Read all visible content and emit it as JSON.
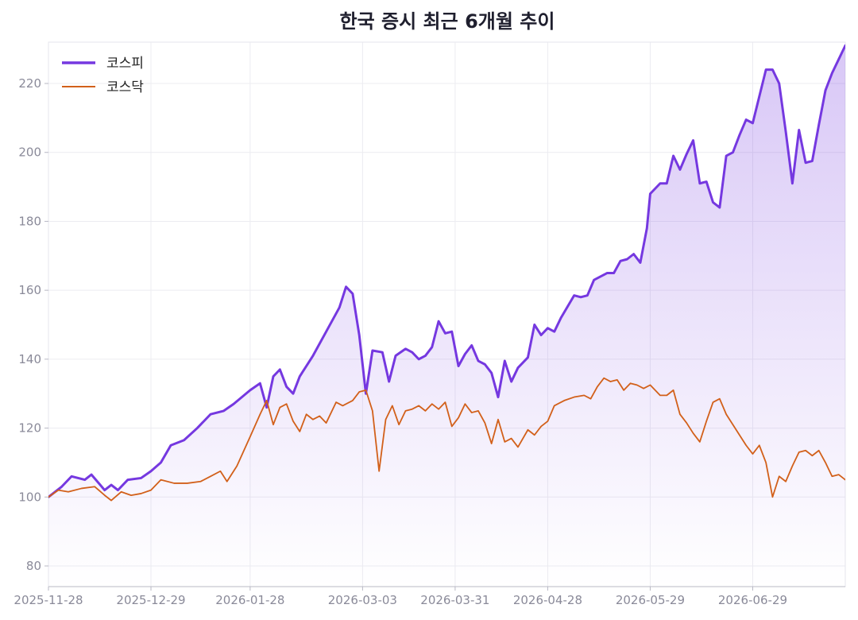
{
  "chart_data": {
    "type": "line",
    "title": "한국 증시 최근 6개월 추이",
    "xlabel": "",
    "ylabel": "",
    "x_ticks": [
      "2025-11-28",
      "2025-12-29",
      "2026-01-28",
      "2026-03-03",
      "2026-03-31",
      "2026-04-28",
      "2026-05-29",
      "2026-06-29"
    ],
    "x_range": [
      "2025-11-28",
      "2026-07-27"
    ],
    "ylim": [
      74,
      232
    ],
    "y_ticks": [
      80,
      100,
      120,
      140,
      160,
      180,
      200,
      220
    ],
    "grid": true,
    "legend_position": "top-left",
    "series": [
      {
        "name": "코스피",
        "color": "#7538e0",
        "area_fill": true,
        "points": [
          [
            "2025-11-28",
            100
          ],
          [
            "2025-12-02",
            103
          ],
          [
            "2025-12-05",
            106
          ],
          [
            "2025-12-09",
            105
          ],
          [
            "2025-12-11",
            106.5
          ],
          [
            "2025-12-15",
            102
          ],
          [
            "2025-12-17",
            103.5
          ],
          [
            "2025-12-19",
            102
          ],
          [
            "2025-12-22",
            105
          ],
          [
            "2025-12-26",
            105.5
          ],
          [
            "2025-12-29",
            107.5
          ],
          [
            "2026-01-01",
            110
          ],
          [
            "2026-01-04",
            115
          ],
          [
            "2026-01-08",
            116.5
          ],
          [
            "2026-01-12",
            120
          ],
          [
            "2026-01-16",
            124
          ],
          [
            "2026-01-20",
            125
          ],
          [
            "2026-01-23",
            127
          ],
          [
            "2026-01-28",
            131
          ],
          [
            "2026-01-31",
            133
          ],
          [
            "2026-02-02",
            126
          ],
          [
            "2026-02-04",
            135
          ],
          [
            "2026-02-06",
            137
          ],
          [
            "2026-02-08",
            132
          ],
          [
            "2026-02-10",
            130
          ],
          [
            "2026-02-12",
            135
          ],
          [
            "2026-02-16",
            141
          ],
          [
            "2026-02-20",
            148
          ],
          [
            "2026-02-24",
            155
          ],
          [
            "2026-02-26",
            161
          ],
          [
            "2026-02-28",
            159
          ],
          [
            "2026-03-02",
            147
          ],
          [
            "2026-03-04",
            130
          ],
          [
            "2026-03-06",
            142.5
          ],
          [
            "2026-03-09",
            142
          ],
          [
            "2026-03-11",
            133.5
          ],
          [
            "2026-03-13",
            141
          ],
          [
            "2026-03-16",
            143
          ],
          [
            "2026-03-18",
            142
          ],
          [
            "2026-03-20",
            140
          ],
          [
            "2026-03-22",
            141
          ],
          [
            "2026-03-24",
            143.5
          ],
          [
            "2026-03-26",
            151
          ],
          [
            "2026-03-28",
            147.5
          ],
          [
            "2026-03-30",
            148
          ],
          [
            "2026-04-01",
            138
          ],
          [
            "2026-04-03",
            141.5
          ],
          [
            "2026-04-05",
            144
          ],
          [
            "2026-04-07",
            139.5
          ],
          [
            "2026-04-09",
            138.5
          ],
          [
            "2026-04-11",
            136
          ],
          [
            "2026-04-13",
            129
          ],
          [
            "2026-04-15",
            139.5
          ],
          [
            "2026-04-17",
            133.5
          ],
          [
            "2026-04-19",
            137.5
          ],
          [
            "2026-04-22",
            140.5
          ],
          [
            "2026-04-24",
            150
          ],
          [
            "2026-04-26",
            147
          ],
          [
            "2026-04-28",
            149
          ],
          [
            "2026-04-30",
            148
          ],
          [
            "2026-05-02",
            152
          ],
          [
            "2026-05-06",
            158.5
          ],
          [
            "2026-05-08",
            158
          ],
          [
            "2026-05-10",
            158.5
          ],
          [
            "2026-05-12",
            163
          ],
          [
            "2026-05-14",
            164
          ],
          [
            "2026-05-16",
            165
          ],
          [
            "2026-05-18",
            165
          ],
          [
            "2026-05-20",
            168.5
          ],
          [
            "2026-05-22",
            169
          ],
          [
            "2026-05-24",
            170.5
          ],
          [
            "2026-05-26",
            168
          ],
          [
            "2026-05-28",
            178
          ],
          [
            "2026-05-29",
            188
          ],
          [
            "2026-06-01",
            191
          ],
          [
            "2026-06-03",
            191
          ],
          [
            "2026-06-05",
            199
          ],
          [
            "2026-06-07",
            195
          ],
          [
            "2026-06-09",
            199.5
          ],
          [
            "2026-06-11",
            203.5
          ],
          [
            "2026-06-13",
            191
          ],
          [
            "2026-06-15",
            191.5
          ],
          [
            "2026-06-17",
            185.5
          ],
          [
            "2026-06-19",
            184
          ],
          [
            "2026-06-21",
            199
          ],
          [
            "2026-06-23",
            200
          ],
          [
            "2026-06-25",
            205
          ],
          [
            "2026-06-27",
            209.5
          ],
          [
            "2026-06-29",
            208.5
          ],
          [
            "2026-07-03",
            224
          ],
          [
            "2026-07-05",
            224
          ],
          [
            "2026-07-07",
            220
          ],
          [
            "2026-07-09",
            206
          ],
          [
            "2026-07-11",
            191
          ],
          [
            "2026-07-13",
            206.5
          ],
          [
            "2026-07-15",
            197
          ],
          [
            "2026-07-17",
            197.5
          ],
          [
            "2026-07-19",
            208
          ],
          [
            "2026-07-21",
            218
          ],
          [
            "2026-07-23",
            223
          ],
          [
            "2026-07-25",
            227
          ],
          [
            "2026-07-27",
            231
          ]
        ]
      },
      {
        "name": "코스닥",
        "color": "#d2601a",
        "area_fill": false,
        "points": [
          [
            "2025-11-28",
            100
          ],
          [
            "2025-12-01",
            102
          ],
          [
            "2025-12-04",
            101.5
          ],
          [
            "2025-12-08",
            102.5
          ],
          [
            "2025-12-12",
            103
          ],
          [
            "2025-12-15",
            100.5
          ],
          [
            "2025-12-17",
            99
          ],
          [
            "2025-12-20",
            101.5
          ],
          [
            "2025-12-23",
            100.5
          ],
          [
            "2025-12-26",
            101
          ],
          [
            "2025-12-29",
            102
          ],
          [
            "2026-01-01",
            105
          ],
          [
            "2026-01-05",
            104
          ],
          [
            "2026-01-09",
            104
          ],
          [
            "2026-01-13",
            104.5
          ],
          [
            "2026-01-16",
            106
          ],
          [
            "2026-01-19",
            107.5
          ],
          [
            "2026-01-21",
            104.5
          ],
          [
            "2026-01-24",
            109
          ],
          [
            "2026-01-28",
            117.5
          ],
          [
            "2026-01-31",
            124
          ],
          [
            "2026-02-02",
            128
          ],
          [
            "2026-02-04",
            121
          ],
          [
            "2026-02-06",
            126
          ],
          [
            "2026-02-08",
            127
          ],
          [
            "2026-02-10",
            122
          ],
          [
            "2026-02-12",
            119
          ],
          [
            "2026-02-14",
            124
          ],
          [
            "2026-02-16",
            122.5
          ],
          [
            "2026-02-18",
            123.5
          ],
          [
            "2026-02-20",
            121.5
          ],
          [
            "2026-02-23",
            127.5
          ],
          [
            "2026-02-25",
            126.5
          ],
          [
            "2026-02-28",
            128
          ],
          [
            "2026-03-02",
            130.5
          ],
          [
            "2026-03-04",
            131
          ],
          [
            "2026-03-06",
            125
          ],
          [
            "2026-03-08",
            107.5
          ],
          [
            "2026-03-10",
            122.5
          ],
          [
            "2026-03-12",
            126.5
          ],
          [
            "2026-03-14",
            121
          ],
          [
            "2026-03-16",
            125
          ],
          [
            "2026-03-18",
            125.5
          ],
          [
            "2026-03-20",
            126.5
          ],
          [
            "2026-03-22",
            125
          ],
          [
            "2026-03-24",
            127
          ],
          [
            "2026-03-26",
            125.5
          ],
          [
            "2026-03-28",
            127.5
          ],
          [
            "2026-03-30",
            120.5
          ],
          [
            "2026-04-01",
            123
          ],
          [
            "2026-04-03",
            127
          ],
          [
            "2026-04-05",
            124.5
          ],
          [
            "2026-04-07",
            125
          ],
          [
            "2026-04-09",
            121.5
          ],
          [
            "2026-04-11",
            115.5
          ],
          [
            "2026-04-13",
            122.5
          ],
          [
            "2026-04-15",
            116
          ],
          [
            "2026-04-17",
            117
          ],
          [
            "2026-04-19",
            114.5
          ],
          [
            "2026-04-22",
            119.5
          ],
          [
            "2026-04-24",
            118
          ],
          [
            "2026-04-26",
            120.5
          ],
          [
            "2026-04-28",
            122
          ],
          [
            "2026-04-30",
            126.5
          ],
          [
            "2026-05-03",
            128
          ],
          [
            "2026-05-06",
            129
          ],
          [
            "2026-05-09",
            129.5
          ],
          [
            "2026-05-11",
            128.5
          ],
          [
            "2026-05-13",
            132
          ],
          [
            "2026-05-15",
            134.5
          ],
          [
            "2026-05-17",
            133.5
          ],
          [
            "2026-05-19",
            134
          ],
          [
            "2026-05-21",
            131
          ],
          [
            "2026-05-23",
            133
          ],
          [
            "2026-05-25",
            132.5
          ],
          [
            "2026-05-27",
            131.5
          ],
          [
            "2026-05-29",
            132.5
          ],
          [
            "2026-06-01",
            129.5
          ],
          [
            "2026-06-03",
            129.5
          ],
          [
            "2026-06-05",
            131
          ],
          [
            "2026-06-07",
            124
          ],
          [
            "2026-06-09",
            121.5
          ],
          [
            "2026-06-11",
            118.5
          ],
          [
            "2026-06-13",
            116
          ],
          [
            "2026-06-15",
            122
          ],
          [
            "2026-06-17",
            127.5
          ],
          [
            "2026-06-19",
            128.5
          ],
          [
            "2026-06-21",
            124
          ],
          [
            "2026-06-23",
            121
          ],
          [
            "2026-06-25",
            118
          ],
          [
            "2026-06-27",
            115
          ],
          [
            "2026-06-29",
            112.5
          ],
          [
            "2026-07-01",
            115
          ],
          [
            "2026-07-03",
            110
          ],
          [
            "2026-07-05",
            100
          ],
          [
            "2026-07-07",
            106
          ],
          [
            "2026-07-09",
            104.5
          ],
          [
            "2026-07-11",
            109
          ],
          [
            "2026-07-13",
            113
          ],
          [
            "2026-07-15",
            113.5
          ],
          [
            "2026-07-17",
            112
          ],
          [
            "2026-07-19",
            113.5
          ],
          [
            "2026-07-21",
            110
          ],
          [
            "2026-07-23",
            106
          ],
          [
            "2026-07-25",
            106.5
          ],
          [
            "2026-07-27",
            105
          ]
        ]
      }
    ]
  }
}
